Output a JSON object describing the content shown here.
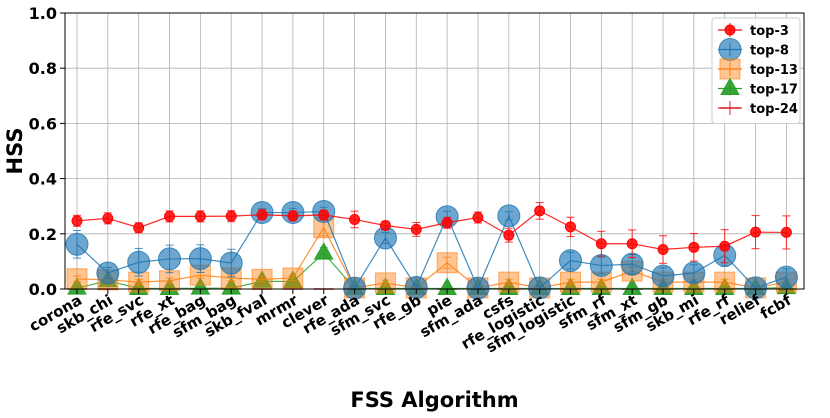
{
  "chart_data": {
    "type": "line",
    "xlabel": "FSS Algorithm",
    "ylabel": "HSS",
    "ylim": [
      0.0,
      1.0
    ],
    "yticks": [
      "0.0",
      "0.2",
      "0.4",
      "0.6",
      "0.8",
      "1.0"
    ],
    "grid": true,
    "legend_position": "top-right",
    "categories": [
      "corona",
      "skb_chi",
      "rfe_svc",
      "rfe_xt",
      "rfe_bag",
      "sfm_bag",
      "skb_fval",
      "mrmr",
      "clever",
      "rfe_ada",
      "sfm_svc",
      "rfe_gb",
      "pie",
      "sfm_ada",
      "csfs",
      "rfe_logistic",
      "sfm_logistic",
      "sfm_rf",
      "sfm_xt",
      "sfm_gb",
      "skb_mi",
      "rfe_rf",
      "relief",
      "fcbf"
    ],
    "series": [
      {
        "name": "top-3",
        "color": "#ff0000",
        "marker": "circle",
        "values": [
          0.247,
          0.256,
          0.222,
          0.263,
          0.263,
          0.264,
          0.269,
          0.265,
          0.268,
          0.252,
          0.23,
          0.216,
          0.24,
          0.259,
          0.195,
          0.283,
          0.225,
          0.164,
          0.164,
          0.143,
          0.151,
          0.155,
          0.206,
          0.205
        ],
        "errors": [
          0.02,
          0.02,
          0.018,
          0.02,
          0.02,
          0.02,
          0.018,
          0.018,
          0.018,
          0.03,
          0.015,
          0.025,
          0.02,
          0.02,
          0.025,
          0.03,
          0.035,
          0.045,
          0.05,
          0.05,
          0.05,
          0.06,
          0.06,
          0.06
        ]
      },
      {
        "name": "top-8",
        "color": "#1f77b4",
        "marker": "circle-large",
        "values": [
          0.162,
          0.058,
          0.097,
          0.109,
          0.11,
          0.094,
          0.277,
          0.277,
          0.281,
          0.003,
          0.185,
          0.006,
          0.262,
          0.003,
          0.265,
          0.004,
          0.103,
          0.085,
          0.09,
          0.047,
          0.058,
          0.122,
          0.004,
          0.043
        ],
        "errors": [
          0.05,
          0.02,
          0.05,
          0.05,
          0.05,
          0.05,
          0.015,
          0.015,
          0.015,
          0.005,
          0.02,
          0.005,
          0.02,
          0.005,
          0.015,
          0.005,
          0.03,
          0.03,
          0.035,
          0.03,
          0.03,
          0.04,
          0.005,
          0.03
        ]
      },
      {
        "name": "top-13",
        "color": "#ff7f0e",
        "marker": "square",
        "values": [
          0.037,
          0.033,
          0.025,
          0.03,
          0.05,
          0.04,
          0.035,
          0.04,
          0.222,
          0.004,
          0.022,
          0.004,
          0.095,
          0.004,
          0.025,
          0.004,
          0.025,
          0.025,
          0.065,
          0.025,
          0.025,
          0.025,
          0.004,
          0.025
        ],
        "errors": [
          0.01,
          0.01,
          0.01,
          0.01,
          0.01,
          0.01,
          0.01,
          0.01,
          0.03,
          0.003,
          0.01,
          0.003,
          0.02,
          0.003,
          0.01,
          0.003,
          0.01,
          0.01,
          0.015,
          0.01,
          0.01,
          0.01,
          0.003,
          0.01
        ]
      },
      {
        "name": "top-17",
        "color": "#2ca02c",
        "marker": "triangle",
        "values": [
          0.003,
          0.03,
          0.002,
          0.002,
          0.003,
          0.003,
          0.028,
          0.027,
          0.13,
          0.002,
          0.002,
          0.002,
          0.002,
          0.002,
          0.002,
          0.002,
          0.002,
          0.002,
          0.002,
          0.002,
          0.002,
          0.002,
          0.002,
          0.005
        ],
        "errors": [
          0.002,
          0.01,
          0.002,
          0.002,
          0.002,
          0.002,
          0.008,
          0.008,
          0.02,
          0.002,
          0.002,
          0.002,
          0.002,
          0.002,
          0.002,
          0.002,
          0.002,
          0.002,
          0.002,
          0.002,
          0.002,
          0.002,
          0.002,
          0.003
        ]
      },
      {
        "name": "top-24",
        "color": "#d62728",
        "marker": "hline",
        "values": [
          0.0,
          0.0,
          0.0,
          0.0,
          0.0,
          0.0,
          0.0,
          0.0,
          0.0,
          0.0,
          0.0,
          0.0,
          0.0,
          0.0,
          0.0,
          0.0,
          0.0,
          0.0,
          0.0,
          0.0,
          0.0,
          0.0,
          0.0,
          0.0
        ],
        "errors": [
          0,
          0,
          0,
          0,
          0,
          0,
          0,
          0,
          0,
          0,
          0,
          0,
          0,
          0,
          0,
          0,
          0,
          0,
          0,
          0,
          0,
          0,
          0,
          0
        ]
      }
    ]
  }
}
